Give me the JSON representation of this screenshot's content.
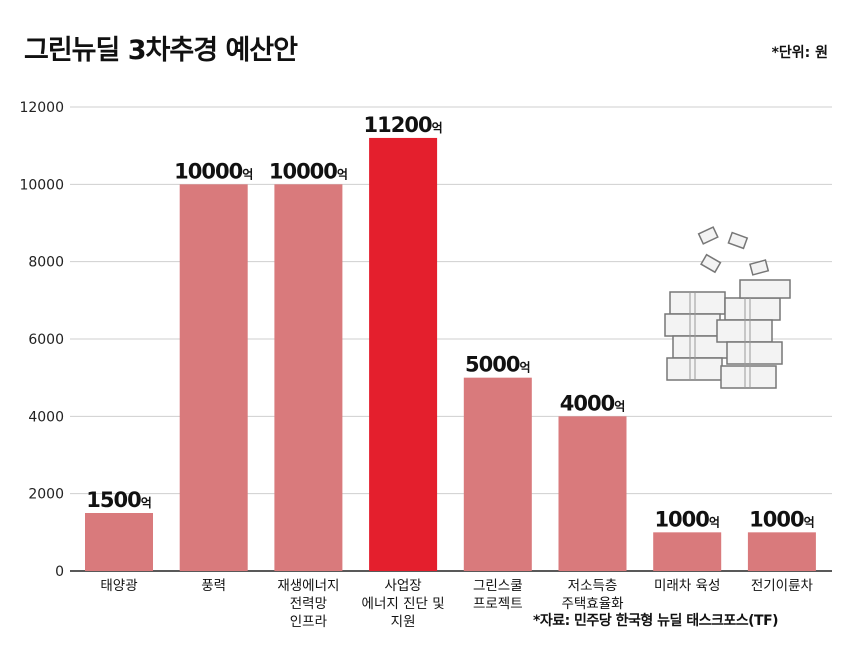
{
  "title": "그린뉴딜 3차추경 예산안",
  "unit_note": "*단위: 원",
  "source_note": "*자료: 민주당 한국형 뉴딜 태스크포스(TF)",
  "colors": {
    "bar_default": "#d97a7c",
    "bar_highlight": "#e41f2d",
    "grid": "#cfcfcf",
    "axis": "#222222"
  },
  "chart_data": {
    "type": "bar",
    "title": "그린뉴딜 3차추경 예산안",
    "ylim": [
      0,
      12000
    ],
    "yticks": [
      "0",
      "2000",
      "4000",
      "6000",
      "8000",
      "10000",
      "12000"
    ],
    "ytick_values": [
      0,
      2000,
      4000,
      6000,
      8000,
      10000,
      12000
    ],
    "grid": true,
    "categories": [
      [
        "태양광"
      ],
      [
        "풍력"
      ],
      [
        "재생에너지",
        "전력망",
        "인프라"
      ],
      [
        "사업장",
        "에너지 진단 및",
        "지원"
      ],
      [
        "그린스쿨",
        "프로젝트"
      ],
      [
        "저소득층",
        "주택효율화"
      ],
      [
        "미래차 육성"
      ],
      [
        "전기이륜차"
      ]
    ],
    "values": [
      1500,
      10000,
      10000,
      11200,
      5000,
      4000,
      1000,
      1000
    ],
    "data_labels": [
      "1500",
      "10000",
      "10000",
      "11200",
      "5000",
      "4000",
      "1000",
      "1000"
    ],
    "label_unit": "억",
    "highlight_index": 3
  },
  "illustration": {
    "icon": "money-stack-icon"
  }
}
